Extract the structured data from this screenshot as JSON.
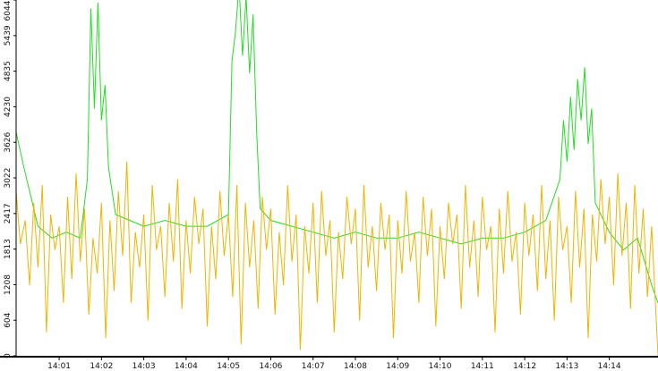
{
  "chart_data": {
    "type": "line",
    "title": "",
    "xlabel": "",
    "ylabel": "",
    "xlim": [
      "13:59:59",
      "14:15:09"
    ],
    "ylim": [
      0,
      6044
    ],
    "y_ticks": [
      0,
      604,
      1208,
      1813,
      2417,
      3022,
      3626,
      4230,
      4835,
      5439,
      6044
    ],
    "x_ticks": [
      "14:01",
      "14:02",
      "14:03",
      "14:04",
      "14:05",
      "14:06",
      "14:07",
      "14:08",
      "14:09",
      "14:10",
      "14:11",
      "14:12",
      "14:13",
      "14:14"
    ],
    "x_tick_times": [
      "14:01:00",
      "14:02:00",
      "14:03:00",
      "14:04:00",
      "14:05:00",
      "14:06:00",
      "14:07:00",
      "14:08:00",
      "14:09:00",
      "14:10:00",
      "14:11:00",
      "14:12:00",
      "14:13:00",
      "14:14:00"
    ],
    "grid": false,
    "series": [
      {
        "color": "#22dd22",
        "points": [
          [
            "13:59:59",
            3800
          ],
          [
            "14:00:10",
            3200
          ],
          [
            "14:00:30",
            2200
          ],
          [
            "14:00:50",
            2000
          ],
          [
            "14:01:10",
            2100
          ],
          [
            "14:01:30",
            2000
          ],
          [
            "14:01:40",
            3000
          ],
          [
            "14:01:45",
            5900
          ],
          [
            "14:01:50",
            4200
          ],
          [
            "14:01:55",
            6000
          ],
          [
            "14:02:00",
            4000
          ],
          [
            "14:02:05",
            4600
          ],
          [
            "14:02:10",
            3200
          ],
          [
            "14:02:20",
            2400
          ],
          [
            "14:02:40",
            2300
          ],
          [
            "14:03:00",
            2200
          ],
          [
            "14:03:30",
            2300
          ],
          [
            "14:04:00",
            2200
          ],
          [
            "14:04:30",
            2200
          ],
          [
            "14:05:00",
            2400
          ],
          [
            "14:05:05",
            5000
          ],
          [
            "14:05:10",
            5500
          ],
          [
            "14:05:15",
            6300
          ],
          [
            "14:05:20",
            5100
          ],
          [
            "14:05:25",
            6100
          ],
          [
            "14:05:30",
            4800
          ],
          [
            "14:05:35",
            5800
          ],
          [
            "14:05:40",
            3800
          ],
          [
            "14:05:45",
            2500
          ],
          [
            "14:06:00",
            2300
          ],
          [
            "14:06:30",
            2200
          ],
          [
            "14:07:00",
            2100
          ],
          [
            "14:07:30",
            2000
          ],
          [
            "14:08:00",
            2100
          ],
          [
            "14:08:30",
            2000
          ],
          [
            "14:09:00",
            2000
          ],
          [
            "14:09:30",
            2100
          ],
          [
            "14:10:00",
            2000
          ],
          [
            "14:10:30",
            1900
          ],
          [
            "14:11:00",
            2000
          ],
          [
            "14:11:30",
            2000
          ],
          [
            "14:12:00",
            2100
          ],
          [
            "14:12:30",
            2300
          ],
          [
            "14:12:50",
            3000
          ],
          [
            "14:12:55",
            4000
          ],
          [
            "14:13:00",
            3300
          ],
          [
            "14:13:05",
            4400
          ],
          [
            "14:13:10",
            3500
          ],
          [
            "14:13:15",
            4700
          ],
          [
            "14:13:20",
            4000
          ],
          [
            "14:13:25",
            4900
          ],
          [
            "14:13:30",
            3600
          ],
          [
            "14:13:35",
            4200
          ],
          [
            "14:13:40",
            2600
          ],
          [
            "14:14:00",
            2100
          ],
          [
            "14:14:20",
            1800
          ],
          [
            "14:14:40",
            2000
          ],
          [
            "14:15:00",
            1200
          ],
          [
            "14:15:09",
            900
          ]
        ]
      },
      {
        "color": "#f0b400",
        "points": [
          [
            "13:59:59",
            2800
          ],
          [
            "14:00:05",
            1900
          ],
          [
            "14:00:12",
            2300
          ],
          [
            "14:00:18",
            1200
          ],
          [
            "14:00:24",
            2600
          ],
          [
            "14:00:30",
            1500
          ],
          [
            "14:00:36",
            2900
          ],
          [
            "14:00:42",
            400
          ],
          [
            "14:00:48",
            2400
          ],
          [
            "14:00:54",
            1800
          ],
          [
            "14:01:00",
            2200
          ],
          [
            "14:01:06",
            900
          ],
          [
            "14:01:12",
            2700
          ],
          [
            "14:01:18",
            1300
          ],
          [
            "14:01:24",
            3100
          ],
          [
            "14:01:30",
            1600
          ],
          [
            "14:01:36",
            2500
          ],
          [
            "14:01:42",
            700
          ],
          [
            "14:01:48",
            2000
          ],
          [
            "14:01:54",
            1400
          ],
          [
            "14:02:00",
            2600
          ],
          [
            "14:02:06",
            300
          ],
          [
            "14:02:12",
            2300
          ],
          [
            "14:02:18",
            1100
          ],
          [
            "14:02:24",
            2800
          ],
          [
            "14:02:30",
            1700
          ],
          [
            "14:02:36",
            3300
          ],
          [
            "14:02:42",
            900
          ],
          [
            "14:02:48",
            2100
          ],
          [
            "14:02:54",
            1500
          ],
          [
            "14:03:00",
            2400
          ],
          [
            "14:03:06",
            600
          ],
          [
            "14:03:12",
            2900
          ],
          [
            "14:03:18",
            1800
          ],
          [
            "14:03:24",
            2200
          ],
          [
            "14:03:30",
            1000
          ],
          [
            "14:03:36",
            2600
          ],
          [
            "14:03:42",
            1600
          ],
          [
            "14:03:48",
            3000
          ],
          [
            "14:03:54",
            800
          ],
          [
            "14:04:00",
            2300
          ],
          [
            "14:04:06",
            1400
          ],
          [
            "14:04:12",
            2700
          ],
          [
            "14:04:18",
            1900
          ],
          [
            "14:04:24",
            2500
          ],
          [
            "14:04:30",
            500
          ],
          [
            "14:04:36",
            2200
          ],
          [
            "14:04:42",
            1300
          ],
          [
            "14:04:48",
            2800
          ],
          [
            "14:04:54",
            1700
          ],
          [
            "14:05:00",
            2400
          ],
          [
            "14:05:06",
            1000
          ],
          [
            "14:05:12",
            2900
          ],
          [
            "14:05:18",
            200
          ],
          [
            "14:05:24",
            2600
          ],
          [
            "14:05:30",
            1500
          ],
          [
            "14:05:36",
            2300
          ],
          [
            "14:05:42",
            800
          ],
          [
            "14:05:48",
            2700
          ],
          [
            "14:05:54",
            1800
          ],
          [
            "14:06:00",
            2500
          ],
          [
            "14:06:06",
            700
          ],
          [
            "14:06:12",
            2100
          ],
          [
            "14:06:18",
            1200
          ],
          [
            "14:06:24",
            2900
          ],
          [
            "14:06:30",
            1600
          ],
          [
            "14:06:36",
            2400
          ],
          [
            "14:06:42",
            100
          ],
          [
            "14:06:48",
            2200
          ],
          [
            "14:06:54",
            1400
          ],
          [
            "14:07:00",
            2600
          ],
          [
            "14:07:06",
            900
          ],
          [
            "14:07:12",
            2800
          ],
          [
            "14:07:18",
            1700
          ],
          [
            "14:07:24",
            2300
          ],
          [
            "14:07:30",
            400
          ],
          [
            "14:07:36",
            2100
          ],
          [
            "14:07:42",
            1300
          ],
          [
            "14:07:48",
            2700
          ],
          [
            "14:07:54",
            1900
          ],
          [
            "14:08:00",
            2500
          ],
          [
            "14:08:06",
            600
          ],
          [
            "14:08:12",
            2900
          ],
          [
            "14:08:18",
            1500
          ],
          [
            "14:08:24",
            2200
          ],
          [
            "14:08:30",
            1100
          ],
          [
            "14:08:36",
            2600
          ],
          [
            "14:08:42",
            1800
          ],
          [
            "14:08:48",
            2400
          ],
          [
            "14:08:54",
            300
          ],
          [
            "14:09:00",
            2300
          ],
          [
            "14:09:06",
            1400
          ],
          [
            "14:09:12",
            2800
          ],
          [
            "14:09:18",
            1600
          ],
          [
            "14:09:24",
            2100
          ],
          [
            "14:09:30",
            900
          ],
          [
            "14:09:36",
            2700
          ],
          [
            "14:09:42",
            1700
          ],
          [
            "14:09:48",
            2500
          ],
          [
            "14:09:54",
            500
          ],
          [
            "14:10:00",
            2200
          ],
          [
            "14:10:06",
            1300
          ],
          [
            "14:10:12",
            2600
          ],
          [
            "14:10:18",
            1900
          ],
          [
            "14:10:24",
            2400
          ],
          [
            "14:10:30",
            800
          ],
          [
            "14:10:36",
            2900
          ],
          [
            "14:10:42",
            1500
          ],
          [
            "14:10:48",
            2300
          ],
          [
            "14:10:54",
            1000
          ],
          [
            "14:11:00",
            2700
          ],
          [
            "14:11:06",
            1800
          ],
          [
            "14:11:12",
            2200
          ],
          [
            "14:11:18",
            400
          ],
          [
            "14:11:24",
            2500
          ],
          [
            "14:11:30",
            1400
          ],
          [
            "14:11:36",
            2800
          ],
          [
            "14:11:42",
            1600
          ],
          [
            "14:11:48",
            2100
          ],
          [
            "14:11:54",
            700
          ],
          [
            "14:12:00",
            2600
          ],
          [
            "14:12:06",
            1700
          ],
          [
            "14:12:12",
            2400
          ],
          [
            "14:12:18",
            1100
          ],
          [
            "14:12:24",
            2900
          ],
          [
            "14:12:30",
            1300
          ],
          [
            "14:12:36",
            2300
          ],
          [
            "14:12:42",
            600
          ],
          [
            "14:12:48",
            2700
          ],
          [
            "14:12:54",
            1800
          ],
          [
            "14:13:00",
            2200
          ],
          [
            "14:13:06",
            900
          ],
          [
            "14:13:12",
            2800
          ],
          [
            "14:13:18",
            1500
          ],
          [
            "14:13:24",
            2500
          ],
          [
            "14:13:30",
            300
          ],
          [
            "14:13:36",
            2400
          ],
          [
            "14:13:42",
            1600
          ],
          [
            "14:13:48",
            3000
          ],
          [
            "14:13:54",
            1900
          ],
          [
            "14:14:00",
            2700
          ],
          [
            "14:14:06",
            1200
          ],
          [
            "14:14:12",
            3100
          ],
          [
            "14:14:18",
            1700
          ],
          [
            "14:14:24",
            2600
          ],
          [
            "14:14:30",
            800
          ],
          [
            "14:14:36",
            2900
          ],
          [
            "14:14:42",
            1400
          ],
          [
            "14:14:48",
            2500
          ],
          [
            "14:14:54",
            1000
          ],
          [
            "14:15:00",
            2200
          ],
          [
            "14:15:09",
            0
          ]
        ]
      }
    ]
  }
}
